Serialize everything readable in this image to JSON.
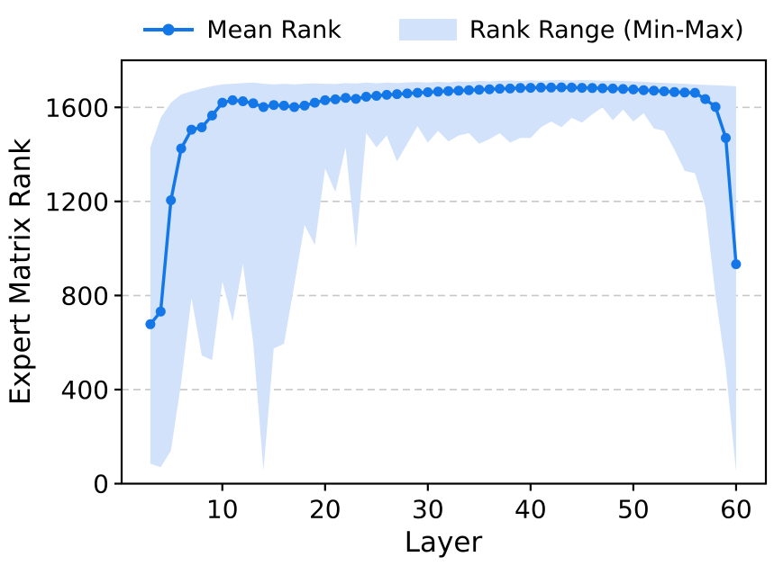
{
  "colors": {
    "line": "#1477e8",
    "band": "#d2e2fb",
    "grid": "#c8c8c8",
    "axis": "#000000",
    "text": "#000000",
    "background": "#ffffff"
  },
  "chart_data": {
    "type": "line",
    "title": "",
    "xlabel": "Layer",
    "ylabel": "Expert Matrix Rank",
    "xlim": [
      0,
      63
    ],
    "ylim": [
      0,
      1800
    ],
    "xticks": [
      10,
      20,
      30,
      40,
      50,
      60
    ],
    "yticks": [
      0,
      400,
      800,
      1200,
      1600
    ],
    "grid": "horizontal-dashed",
    "legend_position": "top-center-outside",
    "x": [
      3,
      4,
      5,
      6,
      7,
      8,
      9,
      10,
      11,
      12,
      13,
      14,
      15,
      16,
      17,
      18,
      19,
      20,
      21,
      22,
      23,
      24,
      25,
      26,
      27,
      28,
      29,
      30,
      31,
      32,
      33,
      34,
      35,
      36,
      37,
      38,
      39,
      40,
      41,
      42,
      43,
      44,
      45,
      46,
      47,
      48,
      49,
      50,
      51,
      52,
      53,
      54,
      55,
      56,
      57,
      58,
      59,
      60
    ],
    "series": [
      {
        "name": "Mean Rank",
        "style": "line-with-markers",
        "values": [
          678,
          732,
          1205,
          1425,
          1505,
          1515,
          1565,
          1620,
          1630,
          1626,
          1617,
          1601,
          1610,
          1607,
          1601,
          1607,
          1620,
          1630,
          1634,
          1640,
          1636,
          1645,
          1649,
          1653,
          1656,
          1659,
          1662,
          1664,
          1667,
          1669,
          1671,
          1673,
          1675,
          1677,
          1679,
          1680,
          1682,
          1683,
          1684,
          1684,
          1685,
          1684,
          1683,
          1682,
          1681,
          1680,
          1678,
          1676,
          1673,
          1671,
          1668,
          1665,
          1663,
          1662,
          1635,
          1602,
          1470,
          933
        ]
      },
      {
        "name": "Rank Range (Min-Max)",
        "style": "band",
        "min": [
          85,
          70,
          140,
          430,
          790,
          545,
          525,
          860,
          690,
          935,
          600,
          55,
          575,
          595,
          845,
          1100,
          1015,
          1340,
          1240,
          1430,
          1000,
          1490,
          1430,
          1480,
          1370,
          1445,
          1520,
          1450,
          1500,
          1455,
          1480,
          1490,
          1445,
          1465,
          1490,
          1450,
          1470,
          1470,
          1515,
          1540,
          1515,
          1555,
          1535,
          1570,
          1600,
          1545,
          1590,
          1540,
          1575,
          1510,
          1500,
          1420,
          1330,
          1320,
          1180,
          800,
          490,
          50
        ],
        "max": [
          1430,
          1555,
          1620,
          1655,
          1668,
          1680,
          1690,
          1698,
          1700,
          1703,
          1705,
          1700,
          1698,
          1700,
          1698,
          1700,
          1702,
          1700,
          1699,
          1703,
          1701,
          1705,
          1702,
          1705,
          1703,
          1706,
          1707,
          1705,
          1708,
          1706,
          1710,
          1708,
          1712,
          1710,
          1713,
          1714,
          1712,
          1715,
          1713,
          1715,
          1716,
          1714,
          1716,
          1715,
          1713,
          1714,
          1712,
          1710,
          1708,
          1706,
          1704,
          1702,
          1700,
          1698,
          1696,
          1694,
          1692,
          1690
        ]
      }
    ]
  }
}
